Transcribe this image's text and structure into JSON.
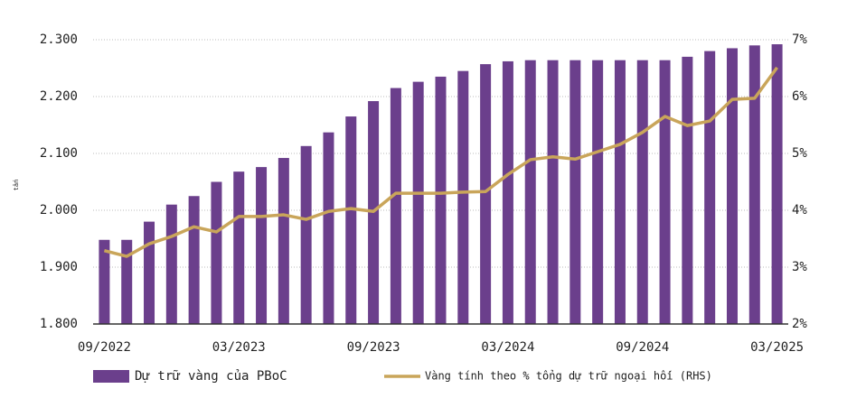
{
  "chart_data": {
    "type": "bar_line",
    "y_label": "tấn",
    "categories": [
      "09/2022",
      null,
      null,
      null,
      null,
      null,
      "03/2023",
      null,
      null,
      null,
      null,
      null,
      "09/2023",
      null,
      null,
      null,
      null,
      null,
      "03/2024",
      null,
      null,
      null,
      null,
      null,
      "09/2024",
      null,
      null,
      null,
      null,
      null,
      "03/2025"
    ],
    "series": [
      {
        "name": "Dự trữ vàng của PBoC",
        "type": "bar",
        "color": "#6b3f8c",
        "values": [
          1948,
          1948,
          1980,
          2010,
          2025,
          2050,
          2068,
          2076,
          2092,
          2113,
          2137,
          2165,
          2192,
          2215,
          2226,
          2235,
          2245,
          2257,
          2262,
          2264,
          2264,
          2264,
          2264,
          2264,
          2264,
          2264,
          2270,
          2280,
          2285,
          2290,
          2292
        ]
      },
      {
        "name": "Vàng tính theo % tổng dự trữ ngoại hối (RHS)",
        "type": "line",
        "axis": "y2",
        "color": "#c9a55a",
        "values": [
          3.29,
          3.19,
          3.41,
          3.54,
          3.71,
          3.62,
          3.89,
          3.89,
          3.92,
          3.84,
          3.98,
          4.03,
          3.98,
          4.3,
          4.3,
          4.3,
          4.32,
          4.33,
          4.63,
          4.89,
          4.94,
          4.9,
          5.03,
          5.16,
          5.37,
          5.65,
          5.49,
          5.57,
          5.95,
          5.97,
          6.51
        ]
      }
    ],
    "ylim": [
      1800,
      2300
    ],
    "yticks": [
      {
        "value": 1800,
        "label": "1.800"
      },
      {
        "value": 1900,
        "label": "1.900"
      },
      {
        "value": 2000,
        "label": "2.000"
      },
      {
        "value": 2100,
        "label": "2.100"
      },
      {
        "value": 2200,
        "label": "2.200"
      },
      {
        "value": 2300,
        "label": "2.300"
      }
    ],
    "y2lim": [
      2,
      7
    ],
    "y2ticks": [
      {
        "value": 2,
        "label": "2%"
      },
      {
        "value": 3,
        "label": "3%"
      },
      {
        "value": 4,
        "label": "4%"
      },
      {
        "value": 5,
        "label": "5%"
      },
      {
        "value": 6,
        "label": "6%"
      },
      {
        "value": 7,
        "label": "7%"
      }
    ],
    "grid": true,
    "legend": "bottom"
  }
}
